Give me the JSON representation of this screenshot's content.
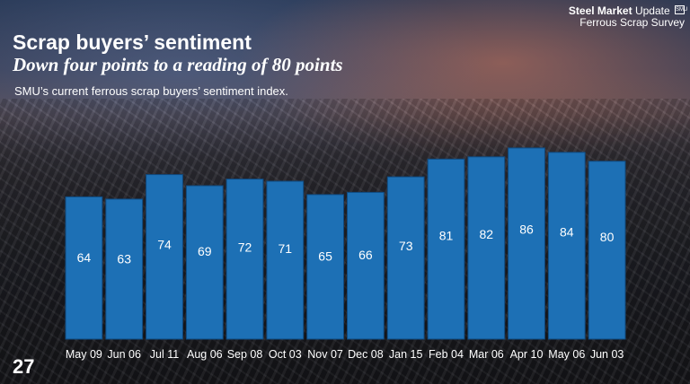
{
  "header": {
    "title": "Scrap buyers’ sentiment",
    "subtitle": "Down four points to a reading of 80 points",
    "description": "SMU’s current ferrous scrap buyers’ sentiment index."
  },
  "brand": {
    "name_bold": "Steel Market",
    "name_rest": "Update",
    "survey": "Ferrous Scrap Survey",
    "logo_mark": "SMU"
  },
  "page_number": "27",
  "colors": {
    "bar": "#1d70b5",
    "bar_edge": "#0f4a80",
    "text": "#ffffff"
  },
  "chart_data": {
    "type": "bar",
    "categories": [
      "May 09",
      "Jun 06",
      "Jul 11",
      "Aug 06",
      "Sep 08",
      "Oct 03",
      "Nov 07",
      "Dec 08",
      "Jan 15",
      "Feb 04",
      "Mar 06",
      "Apr 10",
      "May 06",
      "Jun 03"
    ],
    "values": [
      64,
      63,
      74,
      69,
      72,
      71,
      65,
      66,
      73,
      81,
      82,
      86,
      84,
      80
    ],
    "title": "",
    "xlabel": "",
    "ylabel": "",
    "ylim": [
      0,
      92
    ],
    "grid": false,
    "legend": "none"
  }
}
